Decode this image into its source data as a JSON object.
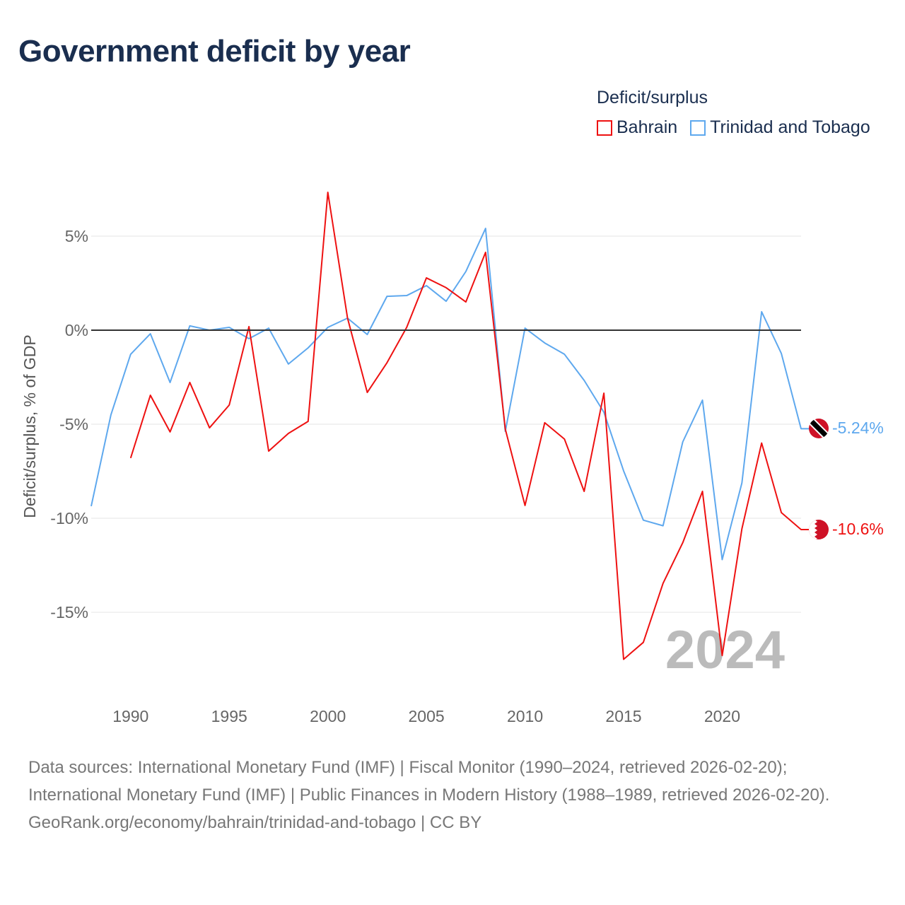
{
  "title": "Government deficit by year",
  "legend": {
    "title": "Deficit/surplus",
    "items": [
      {
        "name": "Bahrain",
        "color": "#ee1111"
      },
      {
        "name": "Trinidad and Tobago",
        "color": "#5ea8ee"
      }
    ]
  },
  "chart_data": {
    "type": "line",
    "title": "Government deficit by year",
    "ylabel": "Deficit/surplus, % of GDP",
    "xlabel": "",
    "xlim": [
      1988,
      2024
    ],
    "ylim": [
      -18.5,
      8
    ],
    "x_ticks": [
      1990,
      1995,
      2000,
      2005,
      2010,
      2015,
      2020
    ],
    "y_ticks": [
      {
        "v": 5,
        "label": "5%"
      },
      {
        "v": 0,
        "label": "0%"
      },
      {
        "v": -5,
        "label": "-5%"
      },
      {
        "v": -10,
        "label": "-10%"
      },
      {
        "v": -15,
        "label": "-15%"
      }
    ],
    "year_watermark": "2024",
    "series": [
      {
        "name": "Trinidad and Tobago",
        "color": "#5ea8ee",
        "end_label": "-5.24%",
        "flag": "trinidad-and-tobago",
        "x": [
          1988,
          1989,
          1990,
          1991,
          1992,
          1993,
          1994,
          1995,
          1996,
          1997,
          1998,
          1999,
          2000,
          2001,
          2002,
          2003,
          2004,
          2005,
          2006,
          2007,
          2008,
          2009,
          2010,
          2011,
          2012,
          2013,
          2014,
          2015,
          2016,
          2017,
          2018,
          2019,
          2020,
          2021,
          2022,
          2023,
          2024
        ],
        "values": [
          -9.36,
          -4.5,
          -1.28,
          -0.19,
          -2.78,
          0.23,
          0,
          0.15,
          -0.45,
          0.11,
          -1.8,
          -0.94,
          0.15,
          0.64,
          -0.23,
          1.8,
          1.84,
          2.37,
          1.54,
          3.12,
          5.41,
          -5.38,
          0.11,
          -0.68,
          -1.28,
          -2.67,
          -4.36,
          -7.48,
          -10.1,
          -10.4,
          -5.94,
          -3.72,
          -12.2,
          -8.12,
          0.98,
          -1.24,
          -5.24
        ]
      },
      {
        "name": "Bahrain",
        "color": "#ee1111",
        "end_label": "-10.6%",
        "flag": "bahrain",
        "x": [
          1990,
          1991,
          1992,
          1993,
          1994,
          1995,
          1996,
          1997,
          1998,
          1999,
          2000,
          2001,
          2002,
          2003,
          2004,
          2005,
          2006,
          2007,
          2008,
          2009,
          2010,
          2011,
          2012,
          2013,
          2014,
          2015,
          2016,
          2017,
          2018,
          2019,
          2020,
          2021,
          2022,
          2023,
          2024
        ],
        "values": [
          -6.8,
          -3.46,
          -5.41,
          -2.78,
          -5.19,
          -3.98,
          0.19,
          -6.43,
          -5.49,
          -4.85,
          7.33,
          0.64,
          -3.31,
          -1.73,
          0.15,
          2.78,
          2.26,
          1.5,
          4.14,
          -5.26,
          -9.32,
          -4.92,
          -5.79,
          -8.57,
          -3.35,
          -17.5,
          -16.6,
          -13.46,
          -11.3,
          -8.57,
          -17.3,
          -10.56,
          -6.0,
          -9.7,
          -10.6
        ]
      }
    ]
  },
  "footer": {
    "sources": "Data sources: International Monetary Fund (IMF) | Fiscal Monitor (1990–2024, retrieved 2026-02-20); International Monetary Fund (IMF) | Public Finances in Modern History (1988–1989, retrieved 2026-02-20).",
    "credit": "GeoRank.org/economy/bahrain/trinidad-and-tobago | CC BY"
  }
}
